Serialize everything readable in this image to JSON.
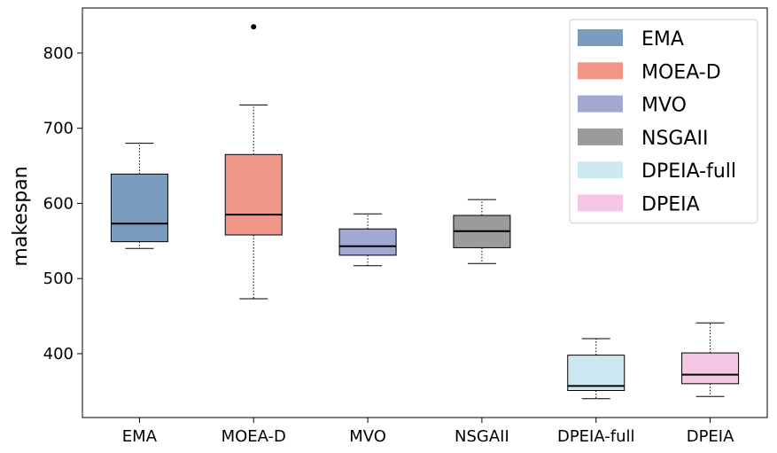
{
  "chart_data": {
    "type": "box",
    "title": "",
    "xlabel": "",
    "ylabel": "makespan",
    "ylim": [
      315,
      860
    ],
    "yticks": [
      400,
      500,
      600,
      700,
      800
    ],
    "categories": [
      "EMA",
      "MOEA-D",
      "MVO",
      "NSGAII",
      "DPEIA-full",
      "DPEIA"
    ],
    "boxes": [
      {
        "name": "EMA",
        "whislo": 540,
        "q1": 549,
        "median": 573,
        "q3": 639,
        "whishi": 680,
        "fliers": [],
        "color": "#7b9cbf"
      },
      {
        "name": "MOEA-D",
        "whislo": 473,
        "q1": 558,
        "median": 585,
        "q3": 665,
        "whishi": 731,
        "fliers": [
          835
        ],
        "color": "#f0978a"
      },
      {
        "name": "MVO",
        "whislo": 517,
        "q1": 531,
        "median": 543,
        "q3": 566,
        "whishi": 586,
        "fliers": [],
        "color": "#a2a8d2"
      },
      {
        "name": "NSGAII",
        "whislo": 520,
        "q1": 541,
        "median": 563,
        "q3": 584,
        "whishi": 605,
        "fliers": [],
        "color": "#9b9b9b"
      },
      {
        "name": "DPEIA-full",
        "whislo": 340,
        "q1": 351,
        "median": 357,
        "q3": 398,
        "whishi": 420,
        "fliers": [],
        "color": "#cde8f0"
      },
      {
        "name": "DPEIA",
        "whislo": 343,
        "q1": 360,
        "median": 372,
        "q3": 401,
        "whishi": 441,
        "fliers": [],
        "color": "#f4c6e3"
      }
    ],
    "legend": {
      "placement": "top-right",
      "entries": [
        {
          "label": "EMA",
          "color": "#7b9cbf"
        },
        {
          "label": "MOEA-D",
          "color": "#f0978a"
        },
        {
          "label": "MVO",
          "color": "#a2a8d2"
        },
        {
          "label": "NSGAII",
          "color": "#9b9b9b"
        },
        {
          "label": "DPEIA-full",
          "color": "#cde8f0"
        },
        {
          "label": "DPEIA",
          "color": "#f4c6e3"
        }
      ]
    }
  }
}
